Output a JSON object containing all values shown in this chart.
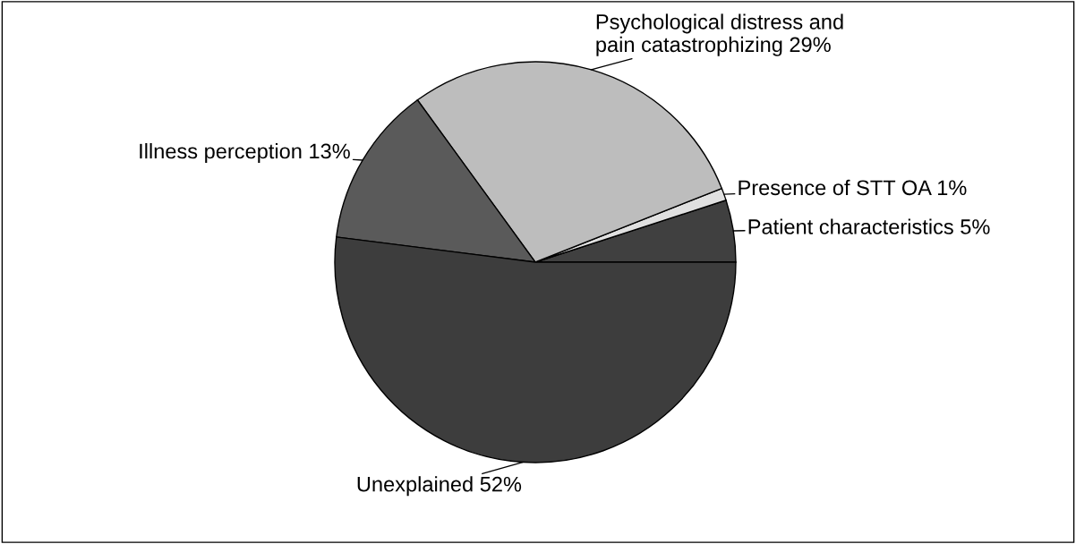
{
  "chart_data": {
    "type": "pie",
    "categories": [
      "Patient characteristics",
      "Presence of STT OA",
      "Psychological distress and\npain catastrophizing",
      "Illness perception",
      "Unexplained"
    ],
    "values": [
      5,
      1,
      29,
      13,
      52
    ],
    "value_labels": [
      "5%",
      "1%",
      "29%",
      "13%",
      "52%"
    ],
    "colors": [
      "#404040",
      "#e0e0e0",
      "#bdbdbd",
      "#5a5a5a",
      "#3d3d3d"
    ]
  }
}
